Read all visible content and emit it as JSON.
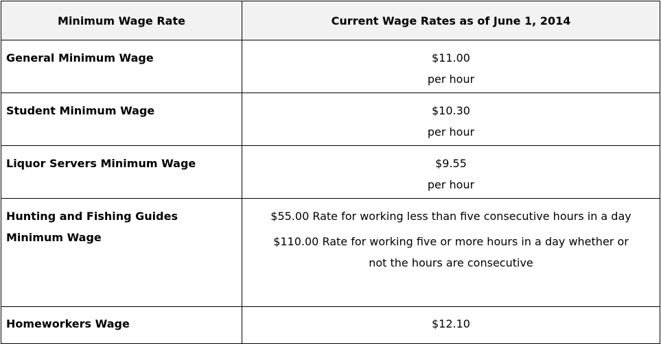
{
  "table": {
    "headers": [
      "Minimum Wage Rate",
      "Current Wage Rates as of June 1, 2014"
    ],
    "rows": [
      {
        "label": "General Minimum Wage",
        "amount": "$11.00",
        "unit": "per hour"
      },
      {
        "label": "Student Minimum Wage",
        "amount": "$10.30",
        "unit": "per hour"
      },
      {
        "label": "Liquor Servers Minimum Wage",
        "amount": "$9.55",
        "unit": "per hour"
      },
      {
        "label_line1": "Hunting and Fishing Guides",
        "label_line2": "Minimum Wage",
        "rate1": "$55.00 Rate for working less than five consecutive hours in a day",
        "rate2": "$110.00 Rate for working five or more hours in a day whether or not the hours are consecutive"
      },
      {
        "label": "Homeworkers Wage",
        "amount": "$12.10"
      }
    ]
  }
}
